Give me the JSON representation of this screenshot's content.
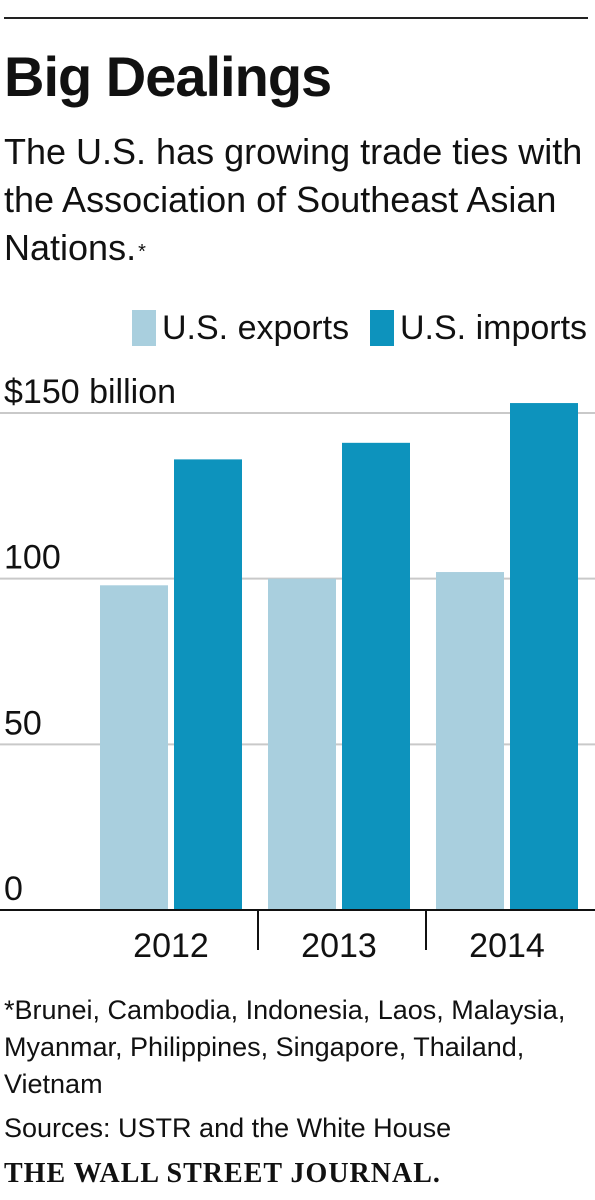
{
  "header": {
    "title": "Big Dealings",
    "subtitle": "The U.S. has growing trade ties with the Association of Southeast Asian Nations.",
    "subtitle_mark": "*"
  },
  "colors": {
    "exports": "#a9cfde",
    "imports": "#0d93bd",
    "grid": "#c9c9c9",
    "axis": "#111111"
  },
  "chart_data": {
    "type": "bar",
    "categories": [
      "2012",
      "2013",
      "2014"
    ],
    "series": [
      {
        "name": "U.S. exports",
        "values": [
          98,
          100,
          102
        ]
      },
      {
        "name": "U.S. imports",
        "values": [
          136,
          141,
          153
        ]
      }
    ],
    "ylim": [
      0,
      150
    ],
    "yticks": [
      {
        "value": 150,
        "label": "$150 billion"
      },
      {
        "value": 100,
        "label": "100"
      },
      {
        "value": 50,
        "label": "50"
      },
      {
        "value": 0,
        "label": "0"
      }
    ],
    "grid": true,
    "legend_position": "top-right"
  },
  "footnote": "*Brunei, Cambodia, Indonesia, Laos, Malaysia, Myanmar, Philippines, Singapore, Thailand, Vietnam",
  "sources": "Sources: USTR and the White House",
  "brand": "THE WALL STREET JOURNAL."
}
